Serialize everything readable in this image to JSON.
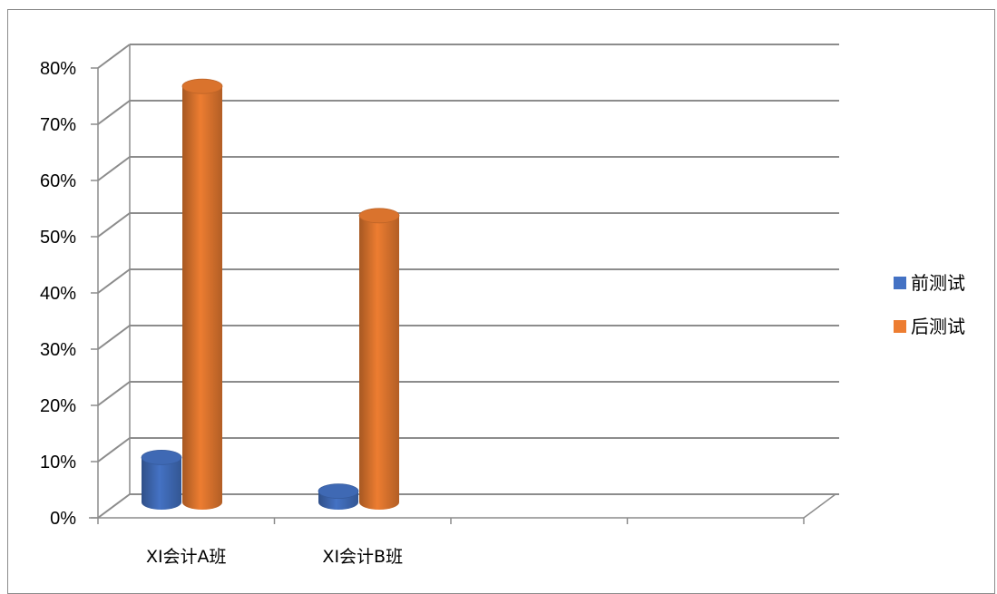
{
  "chart_data": {
    "type": "bar",
    "style": "3d-cylinder",
    "categories": [
      "XI会计A班",
      "XI会计B班",
      "",
      ""
    ],
    "series": [
      {
        "name": "前测试",
        "values": [
          8,
          2,
          null,
          null
        ],
        "color": "#4472c4"
      },
      {
        "name": "后测试",
        "values": [
          74,
          51,
          null,
          null
        ],
        "color": "#ed7d31"
      }
    ],
    "ylim": [
      0,
      80
    ],
    "yticks": [
      0,
      10,
      20,
      30,
      40,
      50,
      60,
      70,
      80
    ],
    "ytick_labels": [
      "0%",
      "10%",
      "20%",
      "30%",
      "40%",
      "50%",
      "60%",
      "70%",
      "80%"
    ],
    "grid": true,
    "legend": "right"
  }
}
